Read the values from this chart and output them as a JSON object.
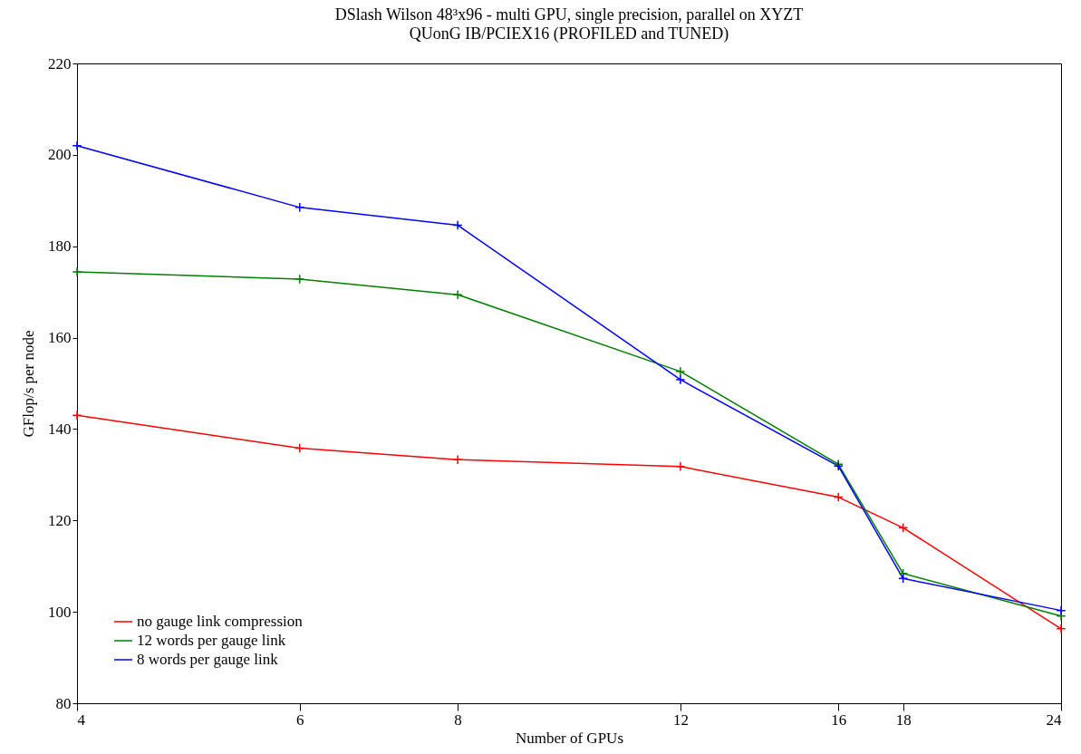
{
  "chart_data": {
    "type": "line",
    "title": "DSlash Wilson 48³x96 - multi GPU, single precision, parallel on XYZT",
    "subtitle": "QUonG IB/PCIEX16 (PROFILED and TUNED)",
    "xlabel": "Number of GPUs",
    "ylabel": "GFlop/s per node",
    "x": [
      4,
      6,
      8,
      12,
      16,
      18,
      24
    ],
    "series": [
      {
        "name": "no gauge link compression",
        "color": "#ff0000",
        "values": [
          143,
          135.8,
          133.3,
          131.8,
          125.1,
          118.4,
          96.3
        ]
      },
      {
        "name": "12 words per gauge link",
        "color": "#008000",
        "values": [
          174.4,
          172.8,
          169.4,
          152.6,
          132.3,
          108.4,
          99.1
        ]
      },
      {
        "name": "8 words per gauge link",
        "color": "#0000ff",
        "values": [
          202,
          188.5,
          184.6,
          150.8,
          131.9,
          107.3,
          100.3
        ]
      }
    ],
    "log": "x",
    "xlim": [
      4,
      24
    ],
    "xticks": [
      4,
      6,
      8,
      12,
      16,
      18,
      24
    ],
    "ylim": [
      80,
      220
    ],
    "yticks": [
      80,
      100,
      120,
      140,
      160,
      180,
      200,
      220
    ],
    "grid": false,
    "legend": "bottom left",
    "marker": "cross",
    "line_style": "solid"
  }
}
